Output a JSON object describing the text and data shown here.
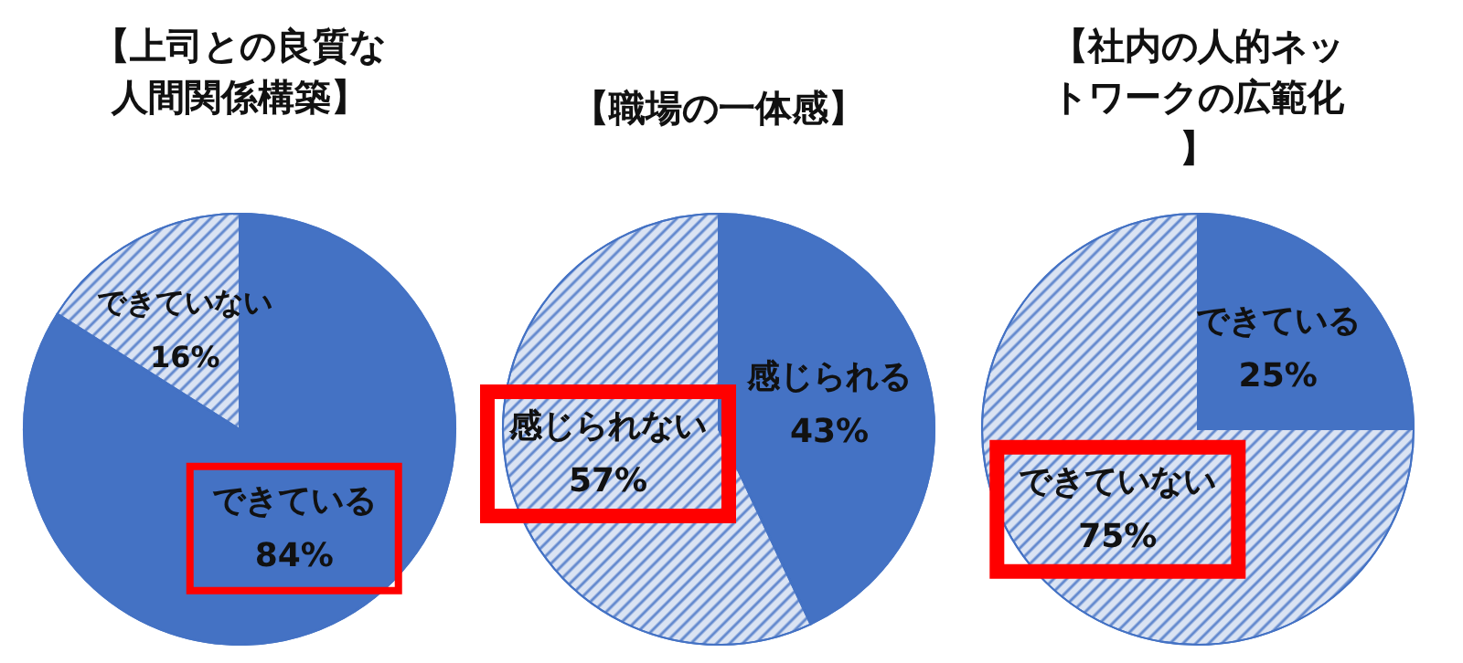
{
  "chart_data": [
    {
      "type": "pie",
      "title": "【上司との良質な人間関係構築】",
      "categories": [
        "できている",
        "できていない"
      ],
      "values": [
        84,
        16
      ],
      "value_labels": [
        "84%",
        "16%"
      ],
      "colors": [
        "#4472c4",
        "#dae3f3"
      ],
      "legend": false
    },
    {
      "type": "pie",
      "title": "【職場の一体感】",
      "categories": [
        "感じられる",
        "感じられない"
      ],
      "values": [
        43,
        57
      ],
      "value_labels": [
        "43%",
        "57%"
      ],
      "colors": [
        "#4472c4",
        "#dae3f3"
      ],
      "legend": false
    },
    {
      "type": "pie",
      "title": "【社内の人的ネットワークの広範化】",
      "categories": [
        "できている",
        "できていない"
      ],
      "values": [
        25,
        75
      ],
      "value_labels": [
        "25%",
        "75%"
      ],
      "colors": [
        "#4472c4",
        "#dae3f3"
      ],
      "legend": false
    }
  ]
}
